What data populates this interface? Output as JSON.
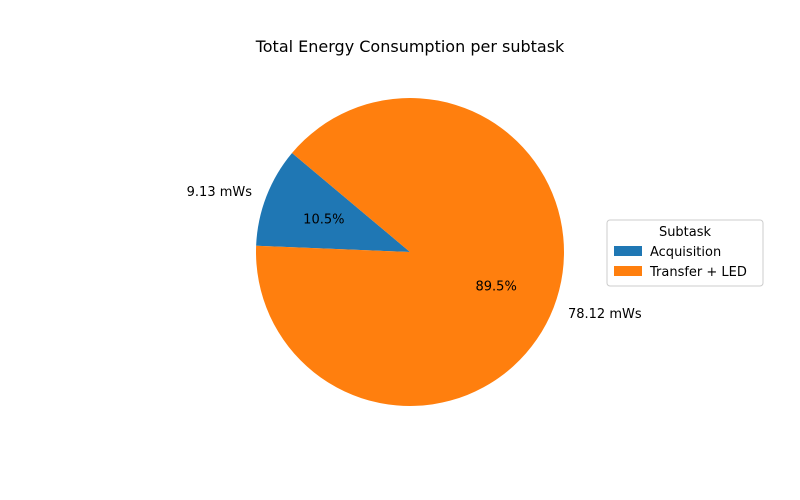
{
  "chart_data": {
    "type": "pie",
    "title": "Total Energy Consumption per subtask",
    "slices": [
      {
        "name": "Acquisition",
        "value": 9.13,
        "label": "9.13 mWs",
        "percent_label": "10.5%",
        "color": "#1f77b4"
      },
      {
        "name": "Transfer + LED",
        "value": 78.12,
        "label": "78.12 mWs",
        "percent_label": "89.5%",
        "color": "#ff7f0e"
      }
    ],
    "start_angle_deg": 140,
    "counterclockwise": true,
    "legend": {
      "title": "Subtask",
      "placement": "center-right",
      "entries": [
        "Acquisition",
        "Transfer + LED"
      ]
    }
  }
}
